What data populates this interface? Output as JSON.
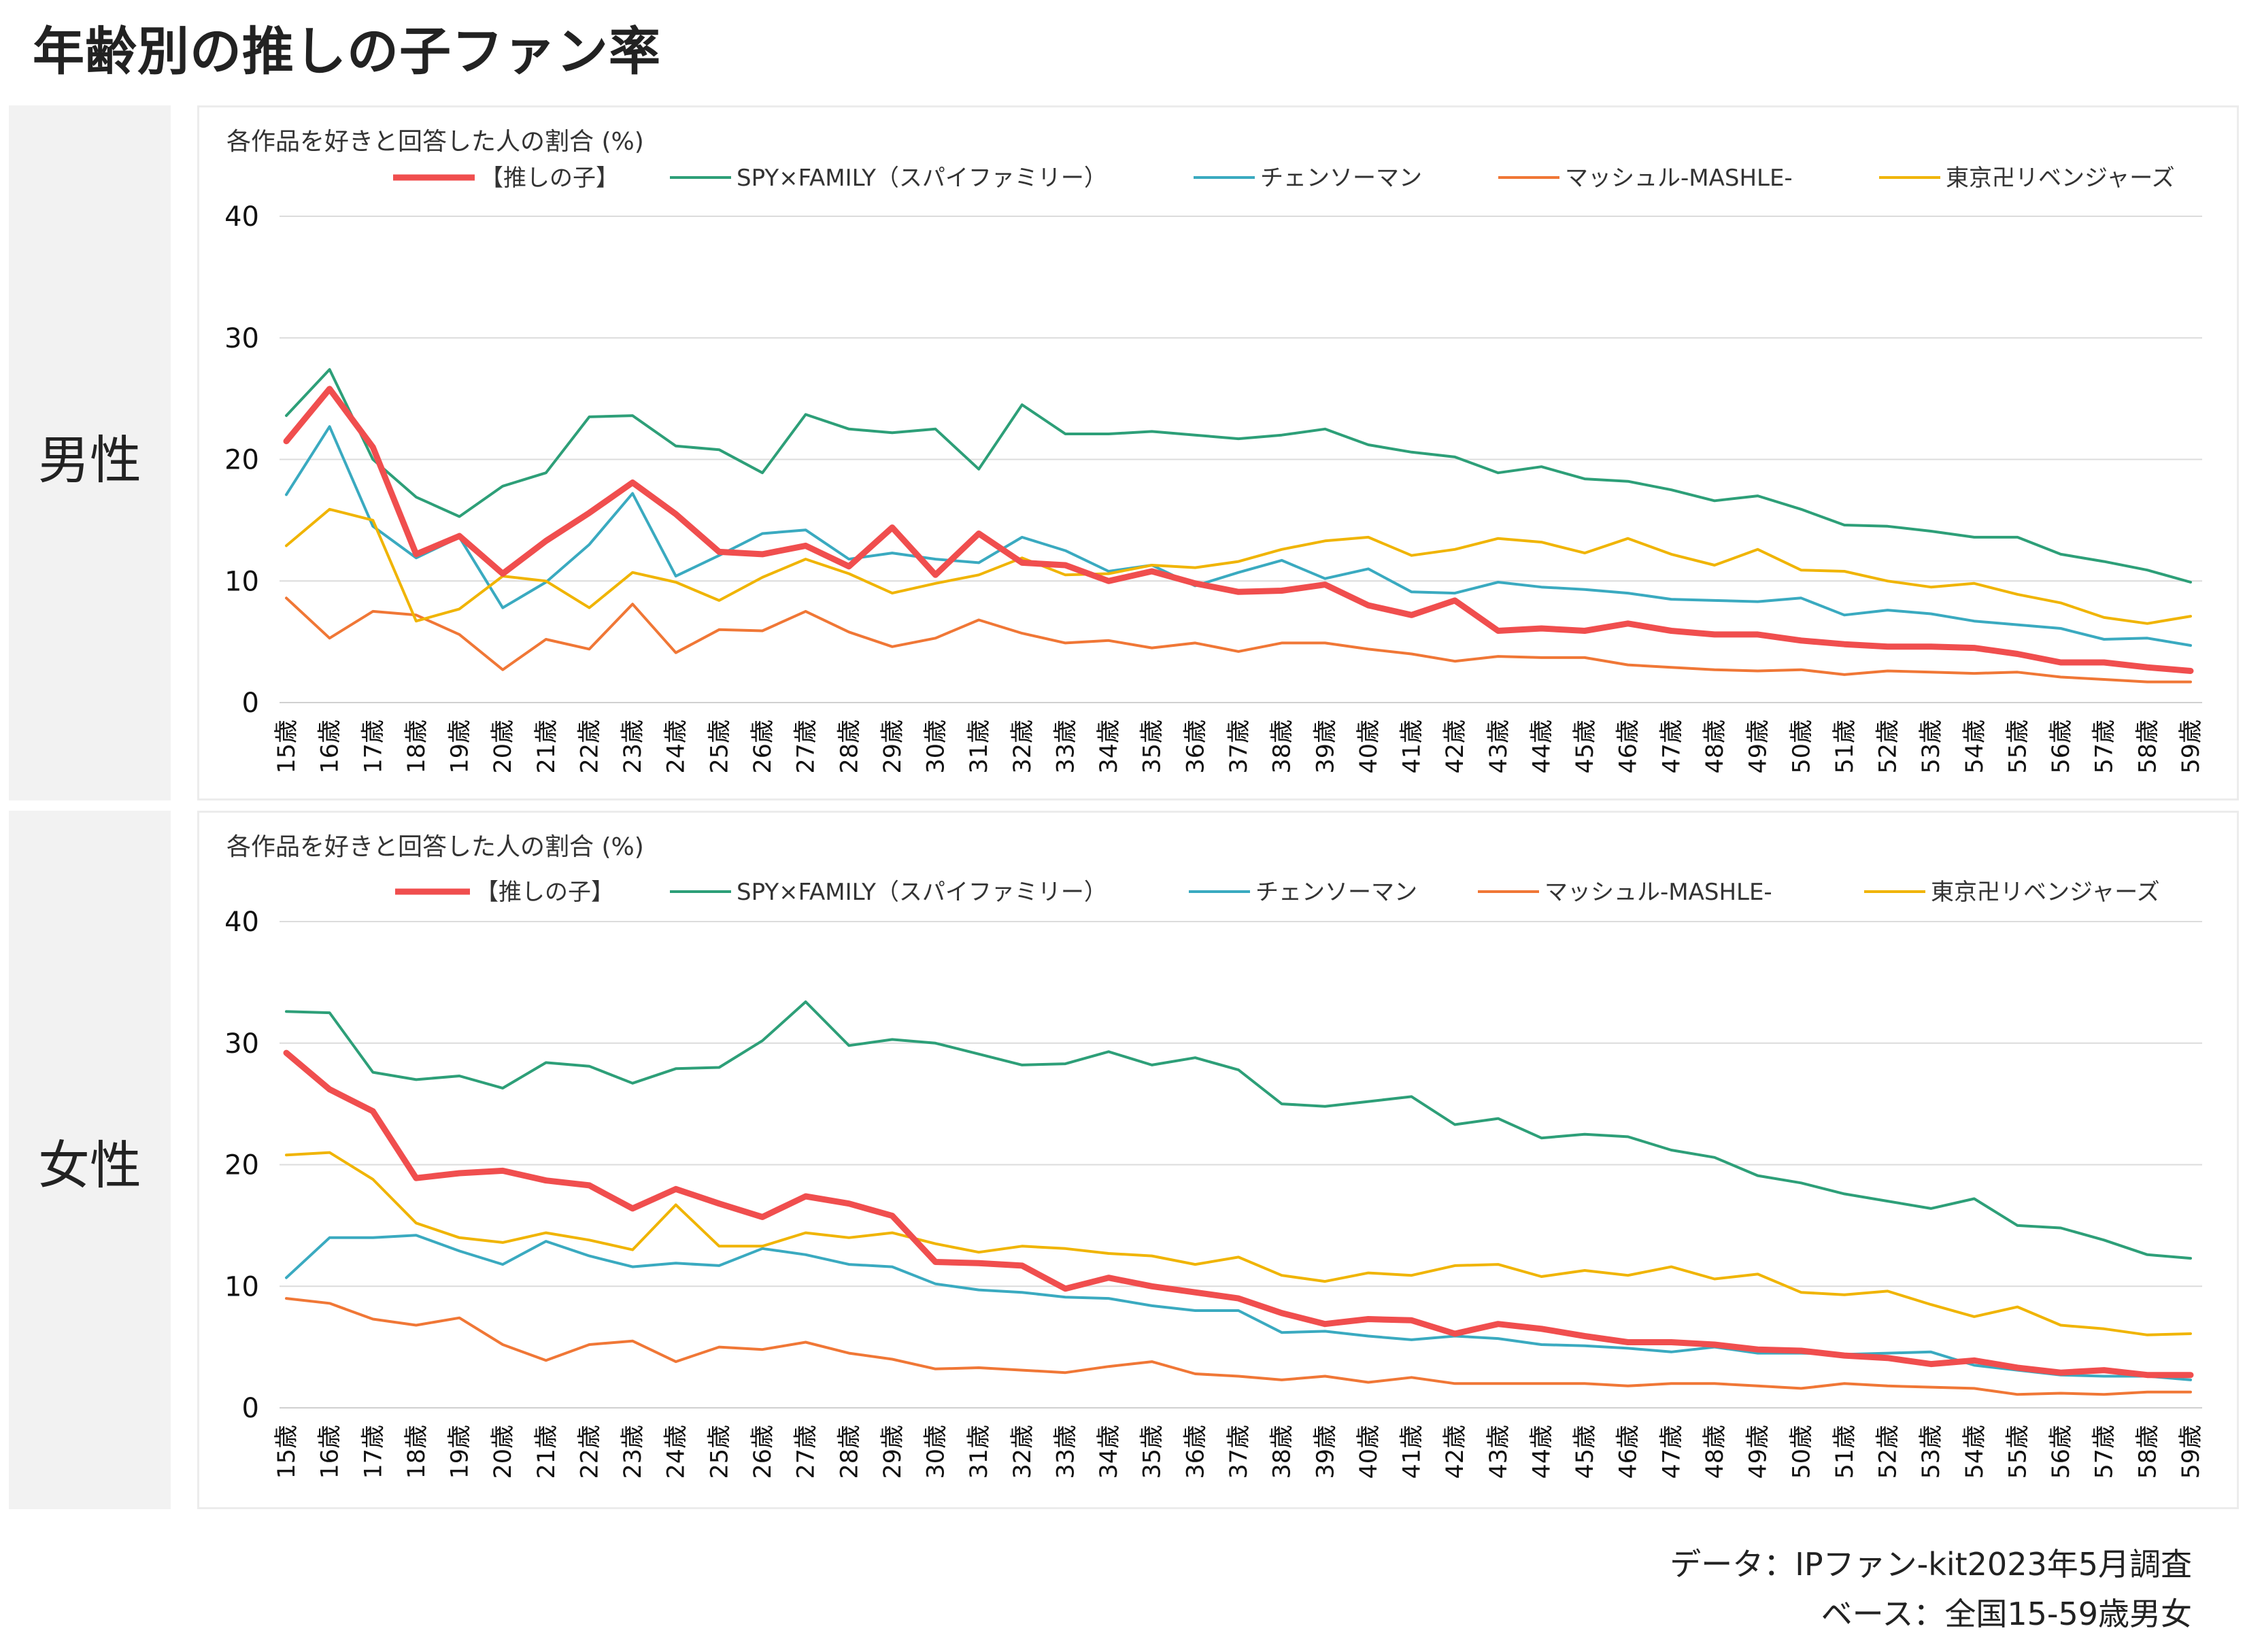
{
  "title": "年齢別の推しの子ファン率",
  "panels": [
    {
      "side_label": "男性",
      "ylabel": "各作品を好きと回答した人の割合 (%)"
    },
    {
      "side_label": "女性",
      "ylabel": "各作品を好きと回答した人の割合 (%)"
    }
  ],
  "footer": {
    "data_line": "データ：IPファン-kit2023年5月調査",
    "base_line": "ベース：全国15-59歳男女"
  },
  "chart_data": [
    {
      "type": "line",
      "title": "男性",
      "ylabel": "各作品を好きと回答した人の割合 (%)",
      "ylim": [
        0,
        40
      ],
      "yticks": [
        0,
        10,
        20,
        30,
        40
      ],
      "grid": true,
      "legend_position": "top",
      "categories": [
        "15歳",
        "16歳",
        "17歳",
        "18歳",
        "19歳",
        "20歳",
        "21歳",
        "22歳",
        "23歳",
        "24歳",
        "25歳",
        "26歳",
        "27歳",
        "28歳",
        "29歳",
        "30歳",
        "31歳",
        "32歳",
        "33歳",
        "34歳",
        "35歳",
        "36歳",
        "37歳",
        "38歳",
        "39歳",
        "40歳",
        "41歳",
        "42歳",
        "43歳",
        "44歳",
        "45歳",
        "46歳",
        "47歳",
        "48歳",
        "49歳",
        "50歳",
        "51歳",
        "52歳",
        "53歳",
        "54歳",
        "55歳",
        "56歳",
        "57歳",
        "58歳",
        "59歳"
      ],
      "series": [
        {
          "name": "【推しの子】",
          "color": "#f04e4e",
          "width": 9,
          "values": [
            21.5,
            25.8,
            21.0,
            12.2,
            13.7,
            10.6,
            13.3,
            15.6,
            18.1,
            15.5,
            12.4,
            12.2,
            12.9,
            11.2,
            14.4,
            10.5,
            13.9,
            11.5,
            11.3,
            10.0,
            10.8,
            9.8,
            9.1,
            9.2,
            9.7,
            8.0,
            7.2,
            8.4,
            5.9,
            6.1,
            5.9,
            6.5,
            5.9,
            5.6,
            5.6,
            5.1,
            4.8,
            4.6,
            4.6,
            4.5,
            4.0,
            3.3,
            3.3,
            2.9,
            2.6
          ]
        },
        {
          "name": "SPY×FAMILY（スパイファミリー）",
          "color": "#2d9f78",
          "width": 4,
          "values": [
            23.6,
            27.4,
            20.0,
            16.9,
            15.3,
            17.8,
            18.9,
            23.5,
            23.6,
            21.1,
            20.8,
            18.9,
            23.7,
            22.5,
            22.2,
            22.5,
            19.2,
            24.5,
            22.1,
            22.1,
            22.3,
            22.0,
            21.7,
            22.0,
            22.5,
            21.2,
            20.6,
            20.2,
            18.9,
            19.4,
            18.4,
            18.2,
            17.5,
            16.6,
            17.0,
            15.9,
            14.6,
            14.5,
            14.1,
            13.6,
            13.6,
            12.2,
            11.6,
            10.9,
            9.9
          ]
        },
        {
          "name": "チェンソーマン",
          "color": "#3aaac0",
          "width": 4,
          "values": [
            17.1,
            22.7,
            14.5,
            11.9,
            13.6,
            7.8,
            9.9,
            13.0,
            17.2,
            10.4,
            12.1,
            13.9,
            14.2,
            11.8,
            12.3,
            11.8,
            11.5,
            13.6,
            12.5,
            10.8,
            11.3,
            9.6,
            10.7,
            11.7,
            10.2,
            11.0,
            9.1,
            9.0,
            9.9,
            9.5,
            9.3,
            9.0,
            8.5,
            8.4,
            8.3,
            8.6,
            7.2,
            7.6,
            7.3,
            6.7,
            6.4,
            6.1,
            5.2,
            5.3,
            4.7
          ]
        },
        {
          "name": "マッシュル-MASHLE-",
          "color": "#f07736",
          "width": 4,
          "values": [
            8.6,
            5.3,
            7.5,
            7.2,
            5.6,
            2.7,
            5.2,
            4.4,
            8.1,
            4.1,
            6.0,
            5.9,
            7.5,
            5.8,
            4.6,
            5.3,
            6.8,
            5.7,
            4.9,
            5.1,
            4.5,
            4.9,
            4.2,
            4.9,
            4.9,
            4.4,
            4.0,
            3.4,
            3.8,
            3.7,
            3.7,
            3.1,
            2.9,
            2.7,
            2.6,
            2.7,
            2.3,
            2.6,
            2.5,
            2.4,
            2.5,
            2.1,
            1.9,
            1.7,
            1.7
          ]
        },
        {
          "name": "東京卍リベンジャーズ",
          "color": "#f0b400",
          "width": 4,
          "values": [
            12.9,
            15.9,
            15.0,
            6.7,
            7.7,
            10.4,
            10.0,
            7.8,
            10.7,
            9.9,
            8.4,
            10.3,
            11.8,
            10.6,
            9.0,
            9.8,
            10.5,
            11.9,
            10.5,
            10.6,
            11.3,
            11.1,
            11.6,
            12.6,
            13.3,
            13.6,
            12.1,
            12.6,
            13.5,
            13.2,
            12.3,
            13.5,
            12.2,
            11.3,
            12.6,
            10.9,
            10.8,
            10.0,
            9.5,
            9.8,
            8.9,
            8.2,
            7.0,
            6.5,
            7.1
          ]
        }
      ]
    },
    {
      "type": "line",
      "title": "女性",
      "ylabel": "各作品を好きと回答した人の割合 (%)",
      "ylim": [
        0,
        40
      ],
      "yticks": [
        0,
        10,
        20,
        30,
        40
      ],
      "grid": true,
      "legend_position": "top",
      "categories": [
        "15歳",
        "16歳",
        "17歳",
        "18歳",
        "19歳",
        "20歳",
        "21歳",
        "22歳",
        "23歳",
        "24歳",
        "25歳",
        "26歳",
        "27歳",
        "28歳",
        "29歳",
        "30歳",
        "31歳",
        "32歳",
        "33歳",
        "34歳",
        "35歳",
        "36歳",
        "37歳",
        "38歳",
        "39歳",
        "40歳",
        "41歳",
        "42歳",
        "43歳",
        "44歳",
        "45歳",
        "46歳",
        "47歳",
        "48歳",
        "49歳",
        "50歳",
        "51歳",
        "52歳",
        "53歳",
        "54歳",
        "55歳",
        "56歳",
        "57歳",
        "58歳",
        "59歳"
      ],
      "series": [
        {
          "name": "【推しの子】",
          "color": "#f04e4e",
          "width": 9,
          "values": [
            29.2,
            26.2,
            24.4,
            18.9,
            19.3,
            19.5,
            18.7,
            18.3,
            16.4,
            18.0,
            16.8,
            15.7,
            17.4,
            16.8,
            15.8,
            12.0,
            11.9,
            11.7,
            9.8,
            10.7,
            10.0,
            9.5,
            9.0,
            7.8,
            6.9,
            7.3,
            7.2,
            6.1,
            6.9,
            6.5,
            5.9,
            5.4,
            5.4,
            5.2,
            4.8,
            4.7,
            4.3,
            4.1,
            3.6,
            3.9,
            3.3,
            2.9,
            3.1,
            2.7,
            2.7
          ]
        },
        {
          "name": "SPY×FAMILY（スパイファミリー）",
          "color": "#2d9f78",
          "width": 4,
          "values": [
            32.6,
            32.5,
            27.6,
            27.0,
            27.3,
            26.3,
            28.4,
            28.1,
            26.7,
            27.9,
            28.0,
            30.2,
            33.4,
            29.8,
            30.3,
            30.0,
            29.1,
            28.2,
            28.3,
            29.3,
            28.2,
            28.8,
            27.8,
            25.0,
            24.8,
            25.2,
            25.6,
            23.3,
            23.8,
            22.2,
            22.5,
            22.3,
            21.2,
            20.6,
            19.1,
            18.5,
            17.6,
            17.0,
            16.4,
            17.2,
            15.0,
            14.8,
            13.8,
            12.6,
            12.3
          ]
        },
        {
          "name": "チェンソーマン",
          "color": "#3aaac0",
          "width": 4,
          "values": [
            10.7,
            14.0,
            14.0,
            14.2,
            12.9,
            11.8,
            13.7,
            12.5,
            11.6,
            11.9,
            11.7,
            13.1,
            12.6,
            11.8,
            11.6,
            10.2,
            9.7,
            9.5,
            9.1,
            9.0,
            8.4,
            8.0,
            8.0,
            6.2,
            6.3,
            5.9,
            5.6,
            5.9,
            5.7,
            5.2,
            5.1,
            4.9,
            4.6,
            5.0,
            4.5,
            4.5,
            4.4,
            4.5,
            4.6,
            3.5,
            3.1,
            2.7,
            2.6,
            2.6,
            2.3
          ]
        },
        {
          "name": "マッシュル-MASHLE-",
          "color": "#f07736",
          "width": 4,
          "values": [
            9.0,
            8.6,
            7.3,
            6.8,
            7.4,
            5.2,
            3.9,
            5.2,
            5.5,
            3.8,
            5.0,
            4.8,
            5.4,
            4.5,
            4.0,
            3.2,
            3.3,
            3.1,
            2.9,
            3.4,
            3.8,
            2.8,
            2.6,
            2.3,
            2.6,
            2.1,
            2.5,
            2.0,
            2.0,
            2.0,
            2.0,
            1.8,
            2.0,
            2.0,
            1.8,
            1.6,
            2.0,
            1.8,
            1.7,
            1.6,
            1.1,
            1.2,
            1.1,
            1.3,
            1.3
          ]
        },
        {
          "name": "東京卍リベンジャーズ",
          "color": "#f0b400",
          "width": 4,
          "values": [
            20.8,
            21.0,
            18.8,
            15.2,
            14.0,
            13.6,
            14.4,
            13.8,
            13.0,
            16.7,
            13.3,
            13.3,
            14.4,
            14.0,
            14.4,
            13.5,
            12.8,
            13.3,
            13.1,
            12.7,
            12.5,
            11.8,
            12.4,
            10.9,
            10.4,
            11.1,
            10.9,
            11.7,
            11.8,
            10.8,
            11.3,
            10.9,
            11.6,
            10.6,
            11.0,
            9.5,
            9.3,
            9.6,
            8.5,
            7.5,
            8.3,
            6.8,
            6.5,
            6.0,
            6.1
          ]
        }
      ]
    }
  ]
}
